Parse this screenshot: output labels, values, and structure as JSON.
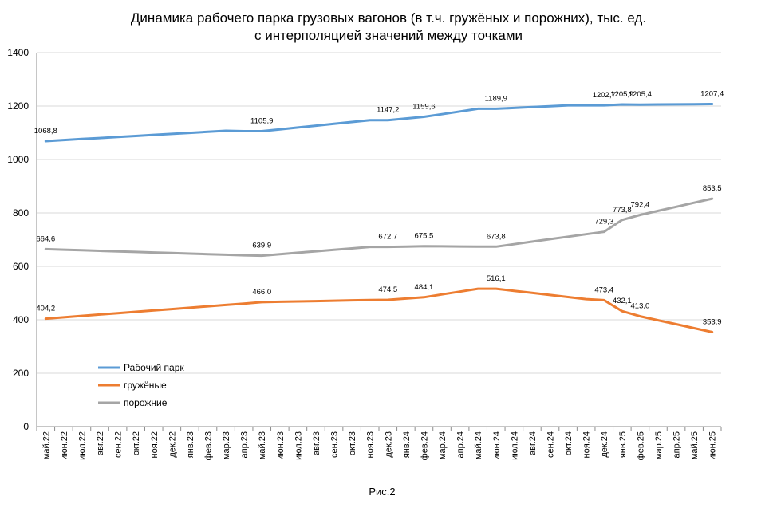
{
  "chart_data": {
    "type": "line",
    "title": "Динамика  рабочего парка грузовых вагонов (в т.ч. гружёных и порожних), тыс. ед.",
    "subtitle": "с интерполяцией значений между точками",
    "caption": "Рис.2",
    "ylim": [
      0,
      1400
    ],
    "yticks": [
      "0",
      "200",
      "400",
      "600",
      "800",
      "1000",
      "1200",
      "1400"
    ],
    "ytick_values": [
      0,
      200,
      400,
      600,
      800,
      1000,
      1200,
      1400
    ],
    "grid": "horizontal",
    "legend_position": "bottom-left",
    "categories": [
      "май.22",
      "июн.22",
      "июл.22",
      "авг.22",
      "сен.22",
      "окт.22",
      "ноя.22",
      "дек.22",
      "янв.23",
      "фев.23",
      "мар.23",
      "апр.23",
      "май.23",
      "июн.23",
      "июл.23",
      "авг.23",
      "сен.23",
      "окт.23",
      "ноя.23",
      "дек.23",
      "янв.24",
      "фев.24",
      "мар.24",
      "апр.24",
      "май.24",
      "июн.24",
      "июл.24",
      "авг.24",
      "сен.24",
      "окт.24",
      "ноя.24",
      "дек.24",
      "янв.25",
      "фев.25",
      "мар.25",
      "апр.25",
      "май.25",
      "июн.25"
    ],
    "series": [
      {
        "name": "Рабочий парк",
        "color": "#5B9BD5",
        "values": [
          1068.8,
          1072.7,
          1076.6,
          1080.4,
          1084.3,
          1088.2,
          1092.1,
          1095.9,
          1099.8,
          1103.7,
          1107.6,
          1105.9,
          1105.9,
          1112.8,
          1119.7,
          1126.5,
          1133.4,
          1140.3,
          1147.2,
          1147.2,
          1153.4,
          1159.6,
          1169.7,
          1179.8,
          1189.9,
          1189.9,
          1192.9,
          1196.0,
          1199.0,
          1202.7,
          1202.7,
          1202.7,
          1205.9,
          1205.4,
          1205.9,
          1206.4,
          1206.9,
          1207.4
        ],
        "labels": [
          {
            "index": 0,
            "text": "1068,8",
            "value": 1068.8
          },
          {
            "index": 12,
            "text": "1105,9",
            "value": 1105.9
          },
          {
            "index": 19,
            "text": "1147,2",
            "value": 1147.2
          },
          {
            "index": 21,
            "text": "1159,6",
            "value": 1159.6
          },
          {
            "index": 25,
            "text": "1189,9",
            "value": 1189.9
          },
          {
            "index": 31,
            "text": "1202,7",
            "value": 1202.7
          },
          {
            "index": 32,
            "text": "1205,9",
            "value": 1205.9
          },
          {
            "index": 33,
            "text": "1205,4",
            "value": 1205.4
          },
          {
            "index": 37,
            "text": "1207,4",
            "value": 1207.4
          }
        ]
      },
      {
        "name": "гружёные",
        "color": "#ED7D31",
        "values": [
          404.2,
          409.3,
          414.5,
          419.6,
          424.7,
          429.8,
          435.0,
          440.1,
          445.2,
          450.3,
          455.5,
          460.6,
          466.0,
          467.4,
          468.7,
          470.0,
          471.4,
          472.7,
          474.1,
          474.5,
          479.3,
          484.1,
          494.8,
          505.5,
          516.1,
          516.1,
          508.3,
          500.6,
          492.8,
          485.0,
          477.3,
          473.4,
          432.1,
          413.0,
          398.2,
          383.5,
          368.7,
          353.9
        ],
        "labels": [
          {
            "index": 0,
            "text": "404,2",
            "value": 404.2
          },
          {
            "index": 12,
            "text": "466,0",
            "value": 466.0
          },
          {
            "index": 19,
            "text": "474,5",
            "value": 474.5
          },
          {
            "index": 21,
            "text": "484,1",
            "value": 484.1
          },
          {
            "index": 25,
            "text": "516,1",
            "value": 516.1
          },
          {
            "index": 31,
            "text": "473,4",
            "value": 473.4
          },
          {
            "index": 32,
            "text": "432,1",
            "value": 432.1
          },
          {
            "index": 33,
            "text": "413,0",
            "value": 413.0
          },
          {
            "index": 37,
            "text": "353,9",
            "value": 353.9
          }
        ]
      },
      {
        "name": "порожние",
        "color": "#A5A5A5",
        "values": [
          664.6,
          662.5,
          660.4,
          658.3,
          656.2,
          654.1,
          652.0,
          649.9,
          647.8,
          645.7,
          643.6,
          641.5,
          639.9,
          645.4,
          650.9,
          656.3,
          661.8,
          667.3,
          672.7,
          672.7,
          674.1,
          675.5,
          674.9,
          674.4,
          673.8,
          673.8,
          683.1,
          692.5,
          701.8,
          711.1,
          720.4,
          729.3,
          773.8,
          792.4,
          807.7,
          823.0,
          838.2,
          853.5
        ],
        "labels": [
          {
            "index": 0,
            "text": "664,6",
            "value": 664.6
          },
          {
            "index": 12,
            "text": "639,9",
            "value": 639.9
          },
          {
            "index": 19,
            "text": "672,7",
            "value": 672.7
          },
          {
            "index": 21,
            "text": "675,5",
            "value": 675.5
          },
          {
            "index": 25,
            "text": "673,8",
            "value": 673.8
          },
          {
            "index": 31,
            "text": "729,3",
            "value": 729.3
          },
          {
            "index": 32,
            "text": "773,8",
            "value": 773.8
          },
          {
            "index": 33,
            "text": "792,4",
            "value": 792.4
          },
          {
            "index": 37,
            "text": "853,5",
            "value": 853.5
          }
        ]
      }
    ]
  }
}
